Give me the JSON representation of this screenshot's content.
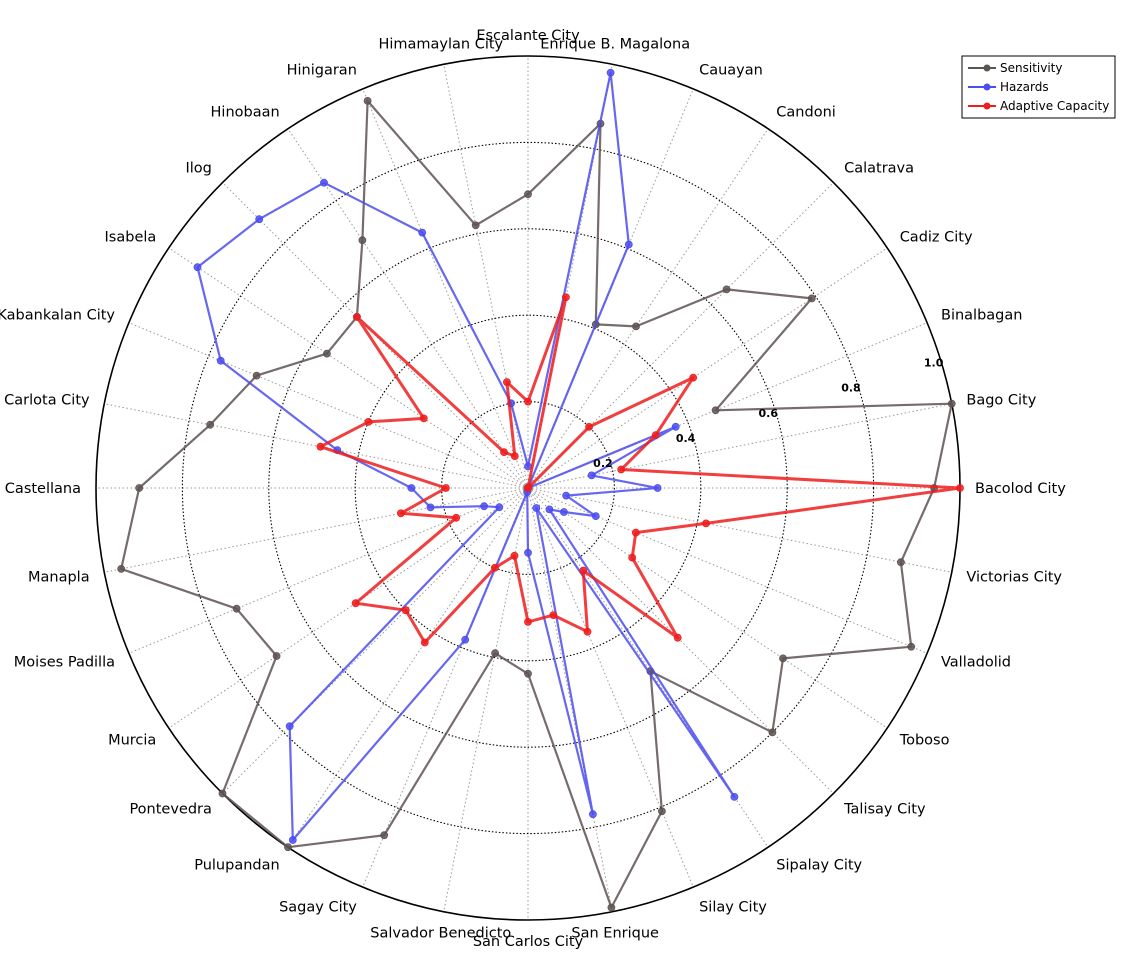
{
  "chart_data": {
    "type": "radar",
    "title": "",
    "categories": [
      "Bacolod City",
      "Bago City",
      "Binalbagan",
      "Cadiz City",
      "Calatrava",
      "Candoni",
      "Cauayan",
      "Enrique B. Magalona",
      "Escalante City",
      "Himamaylan City",
      "Hinigaran",
      "Hinobaan",
      "Ilog",
      "Isabela",
      "Kabankalan City",
      "La Carlota City",
      "La Castellana",
      "Manapla",
      "Moises Padilla",
      "Murcia",
      "Pontevedra",
      "Pulupandan",
      "Sagay City",
      "Salvador Benedicto",
      "San Carlos City",
      "San Enrique",
      "Silay City",
      "Sipalay City",
      "Talisay City",
      "Toboso",
      "Valladolid",
      "Victorias City"
    ],
    "radial_ticks": [
      "0.2",
      "0.4",
      "0.6",
      "0.8",
      "1.0"
    ],
    "rlim": [
      0,
      1
    ],
    "grid": true,
    "legend_position": "top-right",
    "series": [
      {
        "name": "Sensitivity",
        "color": "#5e5252",
        "values": [
          0.94,
          1.0,
          0.47,
          0.79,
          0.65,
          0.45,
          0.41,
          0.86,
          0.68,
          0.62,
          0.97,
          0.69,
          0.56,
          0.56,
          0.68,
          0.75,
          0.9,
          0.96,
          0.73,
          0.7,
          1.0,
          1.0,
          0.87,
          0.39,
          0.43,
          0.99,
          0.81,
          0.51,
          0.8,
          0.71,
          0.96,
          0.88
        ]
      },
      {
        "name": "Hazards",
        "color": "#4c4cef",
        "values": [
          0.3,
          0.15,
          0.37,
          0.0,
          0.0,
          0.0,
          0.61,
          0.98,
          0.05,
          0.2,
          0.64,
          0.85,
          0.88,
          0.92,
          0.77,
          0.45,
          0.27,
          0.23,
          0.11,
          0.08,
          0.78,
          0.98,
          0.38,
          0.01,
          0.15,
          0.77,
          0.05,
          0.86,
          0.07,
          0.1,
          0.17,
          0.09
        ]
      },
      {
        "name": "Adaptive Capacity",
        "color": "#ee1c1c",
        "values": [
          1.0,
          0.22,
          0.32,
          0.46,
          0.2,
          0.0,
          0.0,
          0.45,
          0.2,
          0.25,
          0.08,
          0.1,
          0.56,
          0.29,
          0.4,
          0.49,
          0.19,
          0.3,
          0.18,
          0.48,
          0.4,
          0.43,
          0.2,
          0.16,
          0.31,
          0.3,
          0.36,
          0.23,
          0.49,
          0.29,
          0.27,
          0.42
        ]
      }
    ]
  }
}
